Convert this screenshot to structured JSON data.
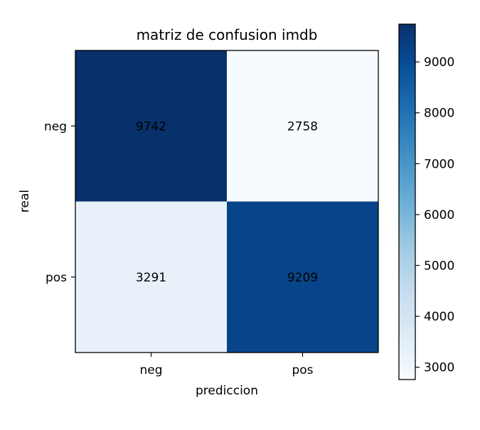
{
  "chart_data": {
    "type": "heatmap",
    "title": "matriz de confusion imdb",
    "xlabel": "prediccion",
    "ylabel": "real",
    "x_categories": [
      "neg",
      "pos"
    ],
    "y_categories": [
      "neg",
      "pos"
    ],
    "values": [
      [
        9742,
        2758
      ],
      [
        3291,
        9209
      ]
    ],
    "value_labels": [
      [
        "9742",
        "2758"
      ],
      [
        "3291",
        "9209"
      ]
    ],
    "colormap": "Blues",
    "colorbar": {
      "range": [
        2758,
        9742
      ],
      "ticks": [
        3000,
        4000,
        5000,
        6000,
        7000,
        8000,
        9000
      ],
      "tick_labels": [
        "3000",
        "4000",
        "5000",
        "6000",
        "7000",
        "8000",
        "9000"
      ],
      "placement": "right"
    },
    "grid": false
  }
}
